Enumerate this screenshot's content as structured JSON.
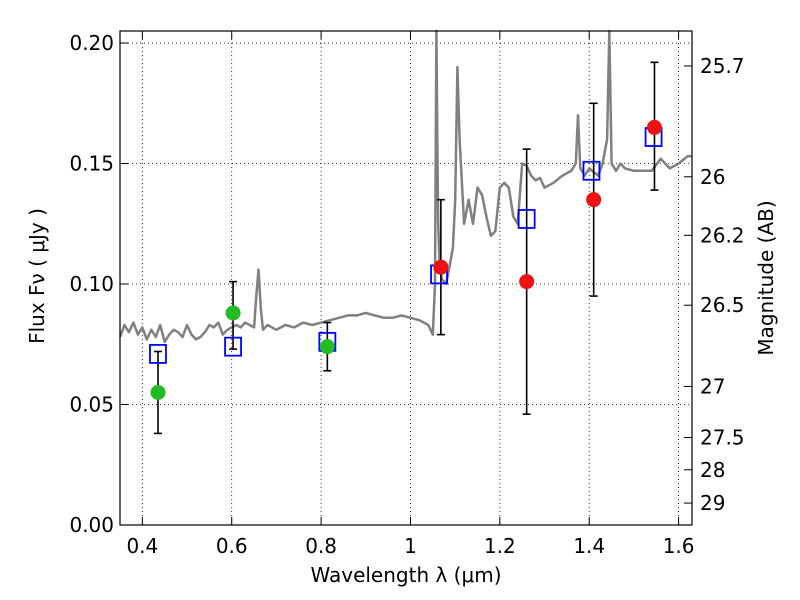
{
  "chart_data": {
    "type": "scatter",
    "xlabel": "Wavelength  λ (μm)",
    "ylabel": "Flux  Fν  ( μJy )",
    "y2label": "Magnitude (AB)",
    "xlim": [
      0.35,
      1.63
    ],
    "ylim": [
      0.0,
      0.205
    ],
    "x_ticks": [
      0.4,
      0.6,
      0.8,
      1.0,
      1.2,
      1.4,
      1.6
    ],
    "x_tick_labels": [
      "0.4",
      "0.6",
      "0.8",
      "1",
      "1.2",
      "1.4",
      "1.6"
    ],
    "y_ticks": [
      0.0,
      0.05,
      0.1,
      0.15,
      0.2
    ],
    "y_tick_labels": [
      "0.00",
      "0.05",
      "0.10",
      "0.15",
      "0.20"
    ],
    "mag_ticks": [
      {
        "label": "25.7",
        "flux": 0.1905
      },
      {
        "label": "26",
        "flux": 0.1445
      },
      {
        "label": "26.2",
        "flux": 0.1202
      },
      {
        "label": "26.5",
        "flux": 0.0912
      },
      {
        "label": "27",
        "flux": 0.0575
      },
      {
        "label": "27.5",
        "flux": 0.0363
      },
      {
        "label": "28",
        "flux": 0.0229
      },
      {
        "label": "29",
        "flux": 0.0091
      }
    ],
    "grid": true,
    "spectrum": {
      "color": "#808080",
      "x": [
        0.35,
        0.36,
        0.37,
        0.38,
        0.39,
        0.4,
        0.41,
        0.42,
        0.43,
        0.44,
        0.45,
        0.46,
        0.47,
        0.48,
        0.49,
        0.5,
        0.51,
        0.52,
        0.53,
        0.54,
        0.55,
        0.56,
        0.57,
        0.58,
        0.59,
        0.6,
        0.61,
        0.62,
        0.63,
        0.64,
        0.65,
        0.655,
        0.66,
        0.665,
        0.67,
        0.68,
        0.7,
        0.72,
        0.74,
        0.76,
        0.78,
        0.8,
        0.82,
        0.84,
        0.86,
        0.88,
        0.9,
        0.92,
        0.94,
        0.96,
        0.98,
        1.0,
        1.02,
        1.04,
        1.05,
        1.055,
        1.058,
        1.06,
        1.062,
        1.065,
        1.07,
        1.08,
        1.09,
        1.095,
        1.1,
        1.105,
        1.11,
        1.12,
        1.13,
        1.14,
        1.15,
        1.16,
        1.17,
        1.18,
        1.19,
        1.2,
        1.21,
        1.22,
        1.23,
        1.24,
        1.25,
        1.26,
        1.27,
        1.28,
        1.29,
        1.3,
        1.32,
        1.34,
        1.36,
        1.37,
        1.375,
        1.38,
        1.39,
        1.4,
        1.42,
        1.43,
        1.44,
        1.445,
        1.45,
        1.46,
        1.47,
        1.48,
        1.5,
        1.52,
        1.54,
        1.56,
        1.58,
        1.6,
        1.62,
        1.63
      ],
      "y": [
        0.078,
        0.083,
        0.08,
        0.084,
        0.079,
        0.082,
        0.077,
        0.081,
        0.078,
        0.083,
        0.076,
        0.079,
        0.081,
        0.08,
        0.078,
        0.083,
        0.079,
        0.077,
        0.078,
        0.08,
        0.083,
        0.082,
        0.084,
        0.079,
        0.081,
        0.082,
        0.083,
        0.082,
        0.084,
        0.083,
        0.082,
        0.095,
        0.106,
        0.09,
        0.081,
        0.083,
        0.081,
        0.083,
        0.082,
        0.084,
        0.083,
        0.084,
        0.085,
        0.086,
        0.087,
        0.087,
        0.088,
        0.087,
        0.086,
        0.086,
        0.087,
        0.086,
        0.085,
        0.083,
        0.079,
        0.1,
        0.205,
        0.16,
        0.125,
        0.11,
        0.102,
        0.1,
        0.11,
        0.115,
        0.135,
        0.19,
        0.16,
        0.125,
        0.135,
        0.125,
        0.14,
        0.137,
        0.128,
        0.12,
        0.122,
        0.14,
        0.142,
        0.14,
        0.128,
        0.125,
        0.15,
        0.149,
        0.145,
        0.143,
        0.144,
        0.14,
        0.142,
        0.145,
        0.147,
        0.15,
        0.17,
        0.148,
        0.145,
        0.148,
        0.145,
        0.15,
        0.16,
        0.205,
        0.15,
        0.147,
        0.15,
        0.148,
        0.147,
        0.147,
        0.147,
        0.152,
        0.148,
        0.15,
        0.153,
        0.153
      ]
    },
    "squares": {
      "color": "#0000ff",
      "points": [
        {
          "x": 0.435,
          "y": 0.071
        },
        {
          "x": 0.603,
          "y": 0.074
        },
        {
          "x": 0.814,
          "y": 0.076
        },
        {
          "x": 1.064,
          "y": 0.104
        },
        {
          "x": 1.26,
          "y": 0.127
        },
        {
          "x": 1.405,
          "y": 0.147
        },
        {
          "x": 1.544,
          "y": 0.161
        }
      ]
    },
    "circles": [
      {
        "x": 0.435,
        "y": 0.055,
        "color": "#22bb22",
        "err_low": 0.038,
        "err_high": 0.072
      },
      {
        "x": 0.603,
        "y": 0.088,
        "color": "#22bb22",
        "err_low": 0.073,
        "err_high": 0.101
      },
      {
        "x": 0.814,
        "y": 0.074,
        "color": "#22bb22",
        "err_low": 0.064,
        "err_high": 0.084
      },
      {
        "x": 1.068,
        "y": 0.107,
        "color": "#ee1111",
        "err_low": 0.079,
        "err_high": 0.135
      },
      {
        "x": 1.26,
        "y": 0.101,
        "color": "#ee1111",
        "err_low": 0.046,
        "err_high": 0.156
      },
      {
        "x": 1.41,
        "y": 0.135,
        "color": "#ee1111",
        "err_low": 0.095,
        "err_high": 0.175
      },
      {
        "x": 1.546,
        "y": 0.165,
        "color": "#ee1111",
        "err_low": 0.139,
        "err_high": 0.192
      }
    ]
  }
}
